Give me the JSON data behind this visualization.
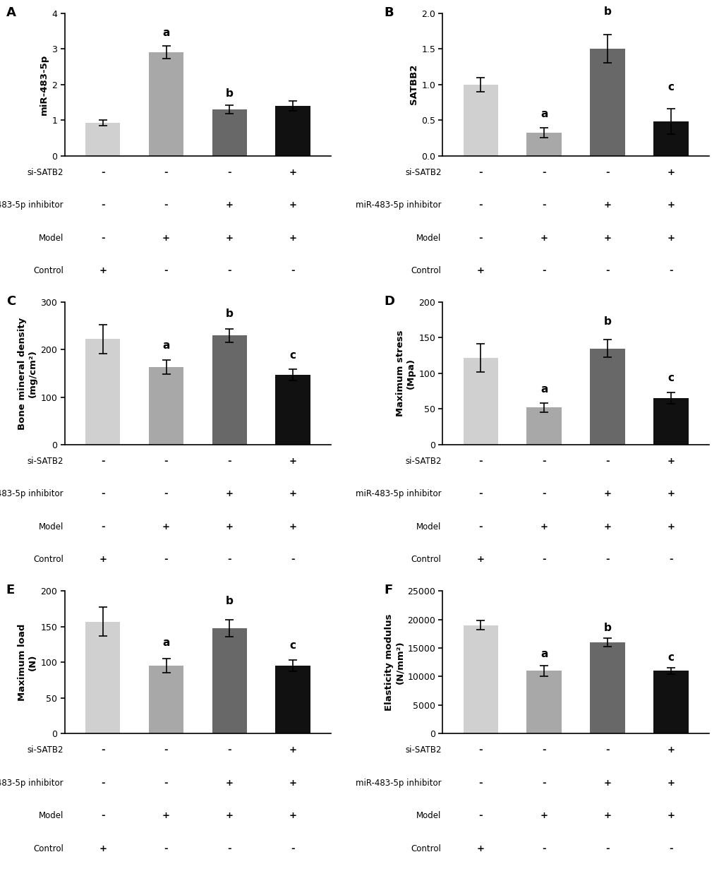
{
  "panels": [
    {
      "label": "A",
      "ylabel": "miR-483-5p",
      "ylim": [
        0,
        4
      ],
      "yticks": [
        0,
        1,
        2,
        3,
        4
      ],
      "values": [
        0.93,
        2.9,
        1.3,
        1.4
      ],
      "errors": [
        0.08,
        0.18,
        0.12,
        0.13
      ],
      "sig_labels": [
        "",
        "a",
        "b",
        ""
      ],
      "sig_offsets": [
        0,
        0.22,
        0.18,
        0
      ]
    },
    {
      "label": "B",
      "ylabel": "SATBB2",
      "ylim": [
        0,
        2.0
      ],
      "yticks": [
        0.0,
        0.5,
        1.0,
        1.5,
        2.0
      ],
      "values": [
        1.0,
        0.32,
        1.5,
        0.48
      ],
      "errors": [
        0.1,
        0.07,
        0.2,
        0.18
      ],
      "sig_labels": [
        "",
        "a",
        "b",
        "c"
      ],
      "sig_offsets": [
        0,
        0.12,
        0.25,
        0.23
      ]
    },
    {
      "label": "C",
      "ylabel": "Bone mineral density\n(mg/cm²)",
      "ylim": [
        0,
        300
      ],
      "yticks": [
        0,
        100,
        200,
        300
      ],
      "values": [
        222,
        163,
        230,
        147
      ],
      "errors": [
        30,
        15,
        14,
        12
      ],
      "sig_labels": [
        "",
        "a",
        "b",
        "c"
      ],
      "sig_offsets": [
        0,
        20,
        20,
        18
      ]
    },
    {
      "label": "D",
      "ylabel": "Maximum stress\n(Mpa)",
      "ylim": [
        0,
        200
      ],
      "yticks": [
        0,
        50,
        100,
        150,
        200
      ],
      "values": [
        122,
        52,
        135,
        65
      ],
      "errors": [
        20,
        6,
        12,
        8
      ],
      "sig_labels": [
        "",
        "a",
        "b",
        "c"
      ],
      "sig_offsets": [
        0,
        12,
        18,
        13
      ]
    },
    {
      "label": "E",
      "ylabel": "Maximum load\n(N)",
      "ylim": [
        0,
        200
      ],
      "yticks": [
        0,
        50,
        100,
        150,
        200
      ],
      "values": [
        157,
        95,
        148,
        95
      ],
      "errors": [
        20,
        10,
        12,
        8
      ],
      "sig_labels": [
        "",
        "a",
        "b",
        "c"
      ],
      "sig_offsets": [
        0,
        15,
        18,
        13
      ]
    },
    {
      "label": "F",
      "ylabel": "Elasticity modulus\n(N/mm²)",
      "ylim": [
        0,
        25000
      ],
      "yticks": [
        0,
        5000,
        10000,
        15000,
        20000,
        25000
      ],
      "values": [
        19000,
        11000,
        16000,
        11000
      ],
      "errors": [
        800,
        900,
        700,
        600
      ],
      "sig_labels": [
        "",
        "a",
        "b",
        "c"
      ],
      "sig_offsets": [
        0,
        1100,
        900,
        800
      ]
    }
  ],
  "bar_colors": [
    "#d0d0d0",
    "#a8a8a8",
    "#686868",
    "#111111"
  ],
  "table_rows": [
    "si-SATB2",
    "miR-483-5p inhibitor",
    "Model",
    "Control"
  ],
  "table_data": [
    [
      "-",
      "-",
      "-",
      "+"
    ],
    [
      "-",
      "-",
      "+",
      "+"
    ],
    [
      "-",
      "+",
      "+",
      "+"
    ],
    [
      "+",
      "-",
      "-",
      "-"
    ]
  ],
  "background_color": "#ffffff",
  "bar_width": 0.55,
  "ylabel_fontsize": 9.5,
  "tick_fontsize": 9,
  "sig_fontsize": 11,
  "panel_label_fontsize": 13,
  "table_label_fontsize": 8.5,
  "table_val_fontsize": 9.5
}
